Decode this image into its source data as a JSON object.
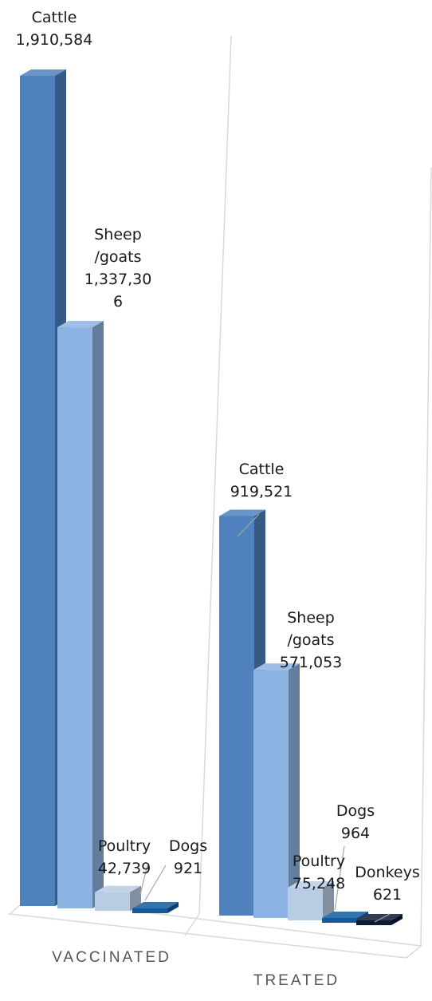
{
  "chart_data": {
    "type": "bar",
    "style": "3d-clustered-column",
    "categories": [
      "VACCINATED",
      "TREATED"
    ],
    "series": [
      {
        "name": "Cattle",
        "values": [
          1910584,
          919521
        ],
        "color": "#4f81bd"
      },
      {
        "name": "Sheep/goats",
        "values": [
          1337306,
          571053
        ],
        "color": "#8db3e2"
      },
      {
        "name": "Poultry",
        "values": [
          42739,
          75248
        ],
        "color": "#b8cce4"
      },
      {
        "name": "Dogs",
        "values": [
          921,
          964
        ],
        "color": "#0f5b9e"
      },
      {
        "name": "Donkeys",
        "values": [
          null,
          621
        ],
        "color": "#0d1b35"
      }
    ],
    "data_labels": {
      "VACCINATED": [
        {
          "name": "Cattle",
          "value": "1,910,584"
        },
        {
          "name": "Sheep\n/goats",
          "value": "1,337,30\n6"
        },
        {
          "name": "Poultry",
          "value": "42,739"
        },
        {
          "name": "Dogs",
          "value": "921"
        }
      ],
      "TREATED": [
        {
          "name": "Cattle",
          "value": "919,521"
        },
        {
          "name": "Sheep\n/goats",
          "value": "571,053"
        },
        {
          "name": "Poultry",
          "value": "75,248"
        },
        {
          "name": "Dogs",
          "value": "964"
        },
        {
          "name": "Donkeys",
          "value": "621"
        }
      ]
    },
    "title": "",
    "xlabel": "",
    "ylabel": "",
    "ylim": [
      0,
      1910584
    ],
    "legend": "none",
    "grid": false
  }
}
